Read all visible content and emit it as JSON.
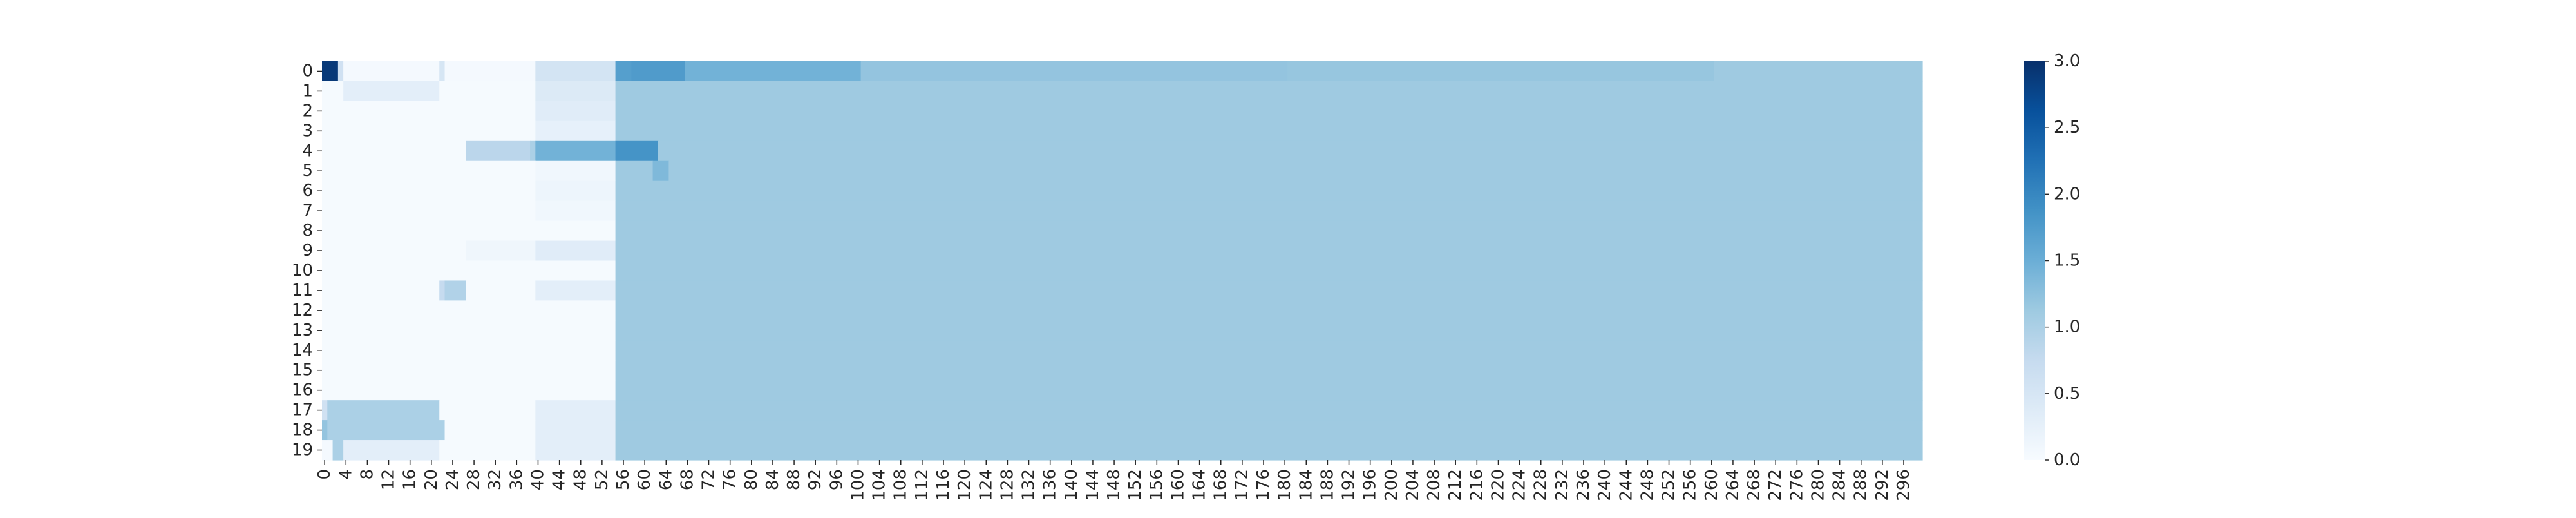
{
  "chart_data": {
    "type": "heatmap",
    "title": "",
    "xlabel": "",
    "ylabel": "",
    "colormap": "Blues",
    "color_low": "#f7fbff",
    "color_high": "#08306b",
    "vmin": 0,
    "vmax": 3,
    "n_cols": 300,
    "n_rows": 20,
    "x_tick_every": 4,
    "rows": [
      {
        "label": "0",
        "segments": [
          [
            0,
            3,
            2.9
          ],
          [
            3,
            4,
            0.6
          ],
          [
            4,
            22,
            0.05
          ],
          [
            22,
            23,
            0.5
          ],
          [
            23,
            40,
            0.05
          ],
          [
            40,
            55,
            0.55
          ],
          [
            55,
            58,
            1.7
          ],
          [
            58,
            68,
            1.75
          ],
          [
            68,
            101,
            1.45
          ],
          [
            101,
            181,
            1.2
          ],
          [
            181,
            261,
            1.18
          ],
          [
            261,
            300,
            1.12
          ]
        ]
      },
      {
        "label": "1",
        "segments": [
          [
            0,
            4,
            0.03
          ],
          [
            4,
            22,
            0.3
          ],
          [
            22,
            40,
            0.03
          ],
          [
            40,
            55,
            0.4
          ],
          [
            55,
            300,
            1.12
          ]
        ]
      },
      {
        "label": "2",
        "segments": [
          [
            0,
            40,
            0.03
          ],
          [
            40,
            55,
            0.35
          ],
          [
            55,
            300,
            1.12
          ]
        ]
      },
      {
        "label": "3",
        "segments": [
          [
            0,
            40,
            0.03
          ],
          [
            40,
            55,
            0.25
          ],
          [
            55,
            300,
            1.12
          ]
        ]
      },
      {
        "label": "4",
        "segments": [
          [
            0,
            27,
            0.03
          ],
          [
            27,
            39,
            0.85
          ],
          [
            39,
            40,
            1.0
          ],
          [
            40,
            55,
            1.45
          ],
          [
            55,
            63,
            1.85
          ],
          [
            63,
            300,
            1.12
          ]
        ]
      },
      {
        "label": "5",
        "segments": [
          [
            0,
            40,
            0.03
          ],
          [
            40,
            55,
            0.1
          ],
          [
            55,
            62,
            1.12
          ],
          [
            62,
            65,
            1.35
          ],
          [
            65,
            300,
            1.12
          ]
        ]
      },
      {
        "label": "6",
        "segments": [
          [
            0,
            40,
            0.03
          ],
          [
            40,
            55,
            0.15
          ],
          [
            55,
            300,
            1.12
          ]
        ]
      },
      {
        "label": "7",
        "segments": [
          [
            0,
            40,
            0.03
          ],
          [
            40,
            55,
            0.1
          ],
          [
            55,
            300,
            1.12
          ]
        ]
      },
      {
        "label": "8",
        "segments": [
          [
            0,
            55,
            0.03
          ],
          [
            55,
            300,
            1.12
          ]
        ]
      },
      {
        "label": "9",
        "segments": [
          [
            0,
            27,
            0.03
          ],
          [
            27,
            40,
            0.12
          ],
          [
            40,
            55,
            0.35
          ],
          [
            55,
            300,
            1.12
          ]
        ]
      },
      {
        "label": "10",
        "segments": [
          [
            0,
            55,
            0.03
          ],
          [
            55,
            300,
            1.12
          ]
        ]
      },
      {
        "label": "11",
        "segments": [
          [
            0,
            22,
            0.03
          ],
          [
            22,
            23,
            0.75
          ],
          [
            23,
            27,
            0.95
          ],
          [
            27,
            40,
            0.03
          ],
          [
            40,
            55,
            0.3
          ],
          [
            55,
            300,
            1.12
          ]
        ]
      },
      {
        "label": "12",
        "segments": [
          [
            0,
            55,
            0.03
          ],
          [
            55,
            300,
            1.12
          ]
        ]
      },
      {
        "label": "13",
        "segments": [
          [
            0,
            55,
            0.03
          ],
          [
            55,
            300,
            1.12
          ]
        ]
      },
      {
        "label": "14",
        "segments": [
          [
            0,
            55,
            0.03
          ],
          [
            55,
            300,
            1.12
          ]
        ]
      },
      {
        "label": "15",
        "segments": [
          [
            0,
            55,
            0.03
          ],
          [
            55,
            300,
            1.12
          ]
        ]
      },
      {
        "label": "16",
        "segments": [
          [
            0,
            55,
            0.03
          ],
          [
            55,
            300,
            1.12
          ]
        ]
      },
      {
        "label": "17",
        "segments": [
          [
            0,
            1,
            0.6
          ],
          [
            1,
            22,
            1.0
          ],
          [
            22,
            40,
            0.03
          ],
          [
            40,
            55,
            0.3
          ],
          [
            55,
            300,
            1.12
          ]
        ]
      },
      {
        "label": "18",
        "segments": [
          [
            0,
            1,
            1.2
          ],
          [
            1,
            23,
            1.0
          ],
          [
            23,
            40,
            0.03
          ],
          [
            40,
            55,
            0.3
          ],
          [
            55,
            300,
            1.12
          ]
        ]
      },
      {
        "label": "19",
        "segments": [
          [
            0,
            2,
            0.05
          ],
          [
            2,
            4,
            1.0
          ],
          [
            4,
            22,
            0.3
          ],
          [
            22,
            40,
            0.03
          ],
          [
            40,
            55,
            0.3
          ],
          [
            55,
            300,
            1.12
          ]
        ]
      }
    ],
    "x_tick_labels": [
      "0",
      "4",
      "8",
      "12",
      "16",
      "20",
      "24",
      "28",
      "32",
      "36",
      "40",
      "44",
      "48",
      "52",
      "56",
      "60",
      "64",
      "68",
      "72",
      "76",
      "80",
      "84",
      "88",
      "92",
      "96",
      "100",
      "104",
      "108",
      "112",
      "116",
      "120",
      "124",
      "128",
      "132",
      "136",
      "140",
      "144",
      "148",
      "152",
      "156",
      "160",
      "164",
      "168",
      "172",
      "176",
      "180",
      "184",
      "188",
      "192",
      "196",
      "200",
      "204",
      "208",
      "212",
      "216",
      "220",
      "224",
      "228",
      "232",
      "236",
      "240",
      "244",
      "248",
      "252",
      "256",
      "260",
      "264",
      "268",
      "272",
      "276",
      "280",
      "284",
      "288",
      "292",
      "296"
    ],
    "colorbar": {
      "min": 0,
      "max": 3,
      "tick_labels": [
        "0.0",
        "0.5",
        "1.0",
        "1.5",
        "2.0",
        "2.5",
        "3.0"
      ]
    }
  }
}
